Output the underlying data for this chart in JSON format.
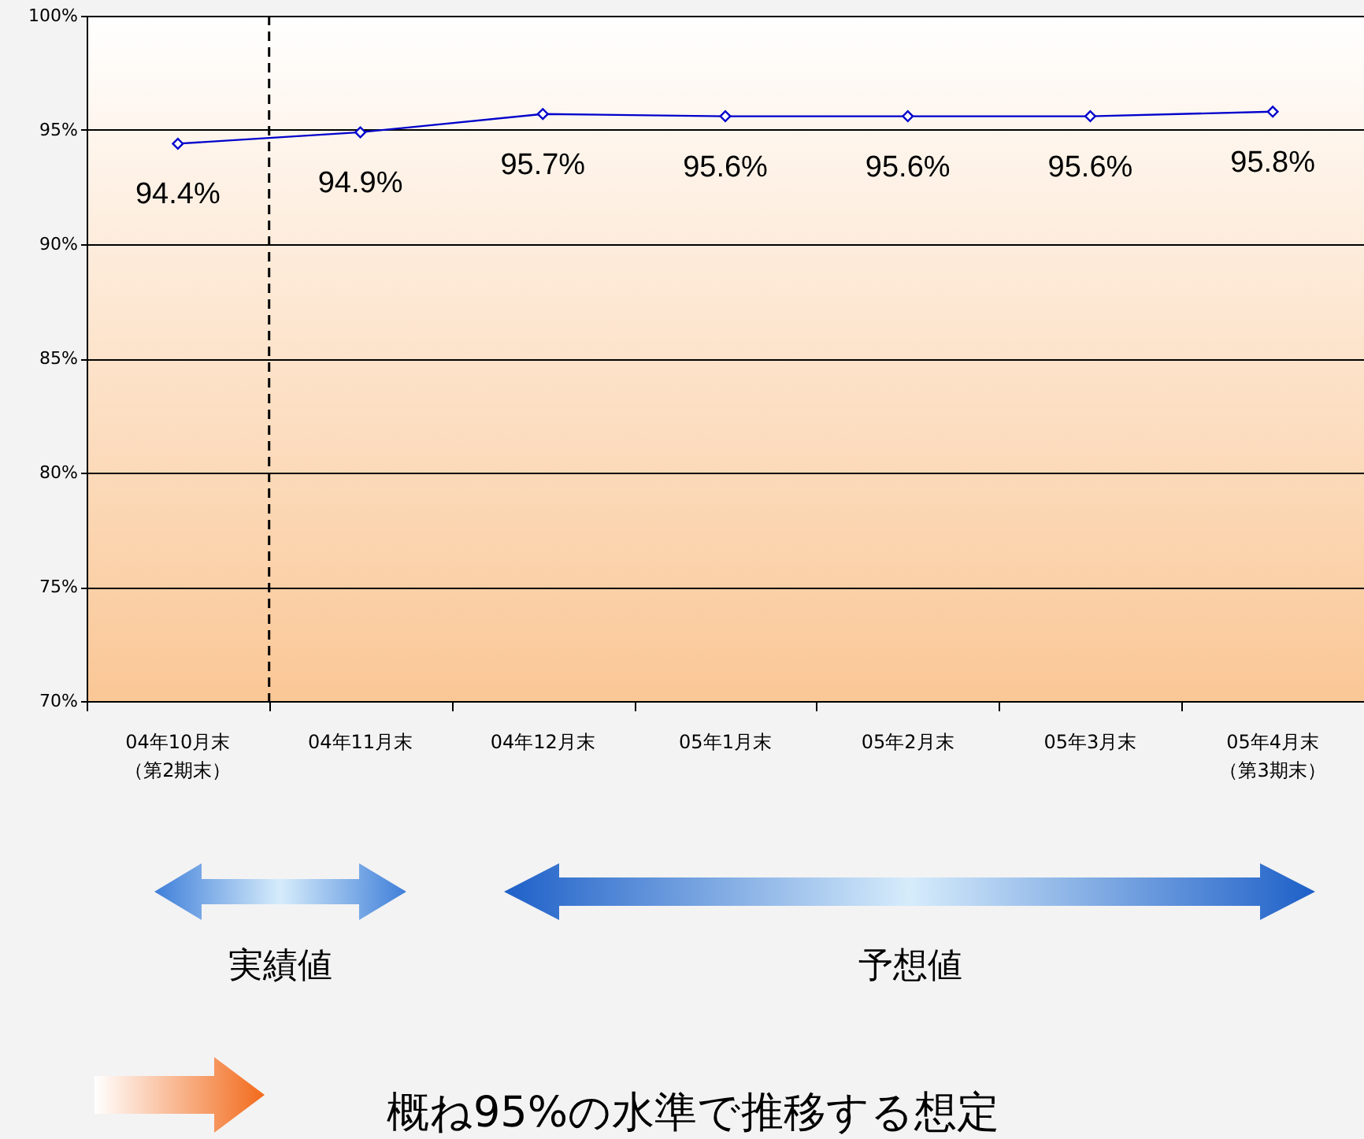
{
  "chart_data": {
    "type": "line",
    "categories": [
      "04年10月末（第2期末）",
      "04年11月末",
      "04年12月末",
      "05年1月末",
      "05年2月末",
      "05年3月末",
      "05年4月末（第3期末）"
    ],
    "series": [
      {
        "color": "#0000cc",
        "values": [
          94.4,
          94.9,
          95.7,
          95.6,
          95.6,
          95.6,
          95.8
        ],
        "value_labels": [
          "94.4%",
          "94.9%",
          "95.7%",
          "95.6%",
          "95.6%",
          "95.6%",
          "95.8%"
        ]
      }
    ],
    "ylim": [
      70,
      100
    ],
    "yticks": [
      {
        "value": 70,
        "label": "70%"
      },
      {
        "value": 75,
        "label": "75%"
      },
      {
        "value": 80,
        "label": "80%"
      },
      {
        "value": 85,
        "label": "85%"
      },
      {
        "value": 90,
        "label": "90%"
      },
      {
        "value": 95,
        "label": "95%"
      },
      {
        "value": 100,
        "label": "100%"
      }
    ],
    "grid": "y",
    "marker": "diamond",
    "line_style": "solid",
    "ref_lines": [
      {
        "axis": "x",
        "value": "04年10月末（第2期末）",
        "color": "#000000",
        "line_style": "dashed"
      }
    ],
    "annotations": [
      "実績値",
      "予想値",
      "概ね95%の水準で推移する想定"
    ]
  }
}
